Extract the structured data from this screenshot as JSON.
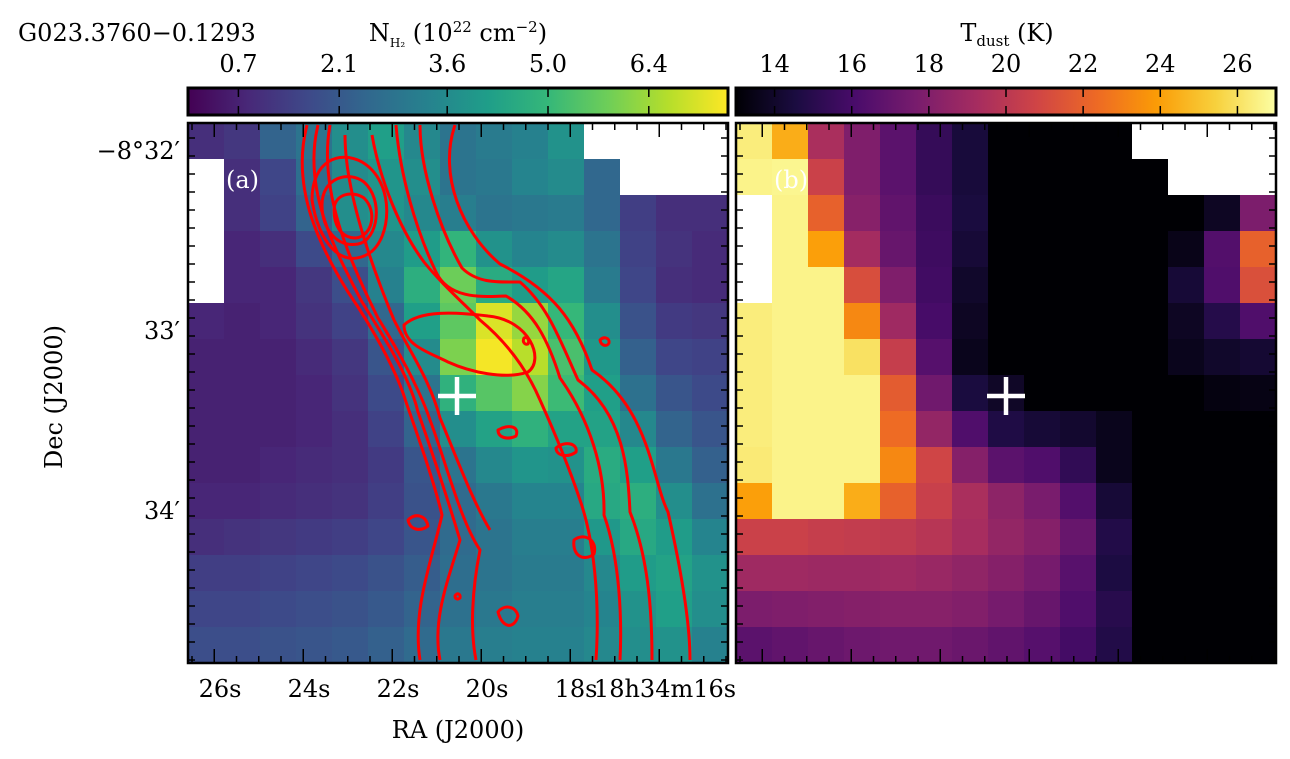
{
  "figure": {
    "source_name": "G023.3760−0.1293"
  },
  "chart_data": [
    {
      "type": "heatmap",
      "panel_label": "(a)",
      "colorbar": {
        "label_main": "N",
        "label_sub": "H₂",
        "label_rest": " (10",
        "label_exp": "22",
        "label_unit": " cm",
        "label_unit_exp": "−2",
        "label_close": ")",
        "ticks": [
          "0.7",
          "2.1",
          "3.6",
          "5.0",
          "6.4"
        ],
        "range": [
          0.0,
          7.5
        ],
        "colormap": "viridis"
      },
      "x_ticks": [
        "26s",
        "24s",
        "22s",
        "20s",
        "18s",
        "18h34m16s"
      ],
      "xlabel": "RA (J2000)",
      "y_ticks": [
        "−8°32′",
        "33′",
        "34′"
      ],
      "ylabel": "Dec (J2000)",
      "grid_shape": [
        15,
        15
      ],
      "values": [
        [
          1.0,
          1.2,
          2.4,
          2.9,
          3.7,
          4.2,
          3.5,
          2.9,
          3.1,
          3.3,
          3.8,
          null,
          null,
          null,
          null
        ],
        [
          null,
          1.0,
          1.6,
          2.7,
          3.6,
          3.9,
          3.7,
          2.9,
          3.0,
          3.4,
          3.6,
          2.5,
          null,
          null,
          null
        ],
        [
          null,
          1.0,
          1.5,
          2.4,
          3.7,
          3.9,
          3.5,
          3.2,
          2.9,
          3.0,
          3.1,
          2.5,
          1.4,
          1.0,
          1.0
        ],
        [
          null,
          0.8,
          1.0,
          1.7,
          2.5,
          3.5,
          4.1,
          4.9,
          3.8,
          3.4,
          3.6,
          2.9,
          1.5,
          1.1,
          0.9
        ],
        [
          null,
          0.8,
          0.8,
          1.2,
          1.8,
          3.3,
          4.7,
          5.8,
          4.6,
          4.1,
          4.4,
          3.1,
          1.6,
          1.0,
          0.9
        ],
        [
          0.8,
          0.7,
          0.8,
          1.1,
          1.5,
          2.5,
          4.2,
          5.6,
          7.1,
          6.3,
          5.0,
          3.7,
          1.9,
          1.3,
          1.2
        ],
        [
          0.7,
          0.7,
          0.7,
          0.9,
          1.2,
          2.0,
          3.6,
          6.0,
          7.4,
          6.7,
          5.3,
          4.0,
          2.3,
          1.6,
          1.5
        ],
        [
          0.7,
          0.7,
          0.7,
          0.8,
          1.1,
          1.7,
          2.9,
          4.8,
          5.5,
          6.1,
          5.1,
          4.2,
          2.8,
          2.0,
          1.7
        ],
        [
          0.7,
          0.7,
          0.7,
          0.8,
          1.0,
          1.5,
          2.4,
          3.7,
          4.3,
          4.8,
          4.3,
          4.3,
          3.5,
          2.4,
          2.0
        ],
        [
          0.7,
          0.7,
          0.8,
          0.9,
          1.0,
          1.3,
          2.0,
          2.9,
          3.5,
          3.9,
          3.8,
          4.6,
          4.2,
          3.0,
          2.3
        ],
        [
          0.8,
          0.8,
          0.9,
          1.0,
          1.1,
          1.4,
          1.9,
          2.6,
          3.0,
          3.4,
          3.4,
          4.5,
          4.7,
          3.7,
          2.8
        ],
        [
          1.0,
          1.1,
          1.2,
          1.3,
          1.4,
          1.6,
          2.0,
          2.6,
          2.9,
          3.2,
          3.2,
          4.0,
          4.5,
          4.1,
          3.4
        ],
        [
          1.4,
          1.4,
          1.5,
          1.6,
          1.7,
          1.9,
          2.2,
          2.7,
          2.9,
          3.1,
          3.1,
          3.5,
          4.1,
          4.3,
          3.8
        ],
        [
          1.6,
          1.6,
          1.7,
          1.8,
          1.9,
          2.1,
          2.4,
          2.8,
          3.0,
          3.2,
          3.2,
          3.4,
          3.8,
          4.2,
          3.7
        ],
        [
          1.8,
          1.8,
          1.9,
          2.0,
          2.1,
          2.3,
          2.6,
          3.0,
          3.2,
          3.3,
          3.3,
          3.5,
          3.7,
          3.8,
          3.3
        ]
      ],
      "contour_color": "#ff0000",
      "marker": "+"
    },
    {
      "type": "heatmap",
      "panel_label": "(b)",
      "colorbar": {
        "label_main": "T",
        "label_sub": "dust",
        "label_rest": " (K)",
        "ticks": [
          "14",
          "16",
          "18",
          "20",
          "22",
          "24",
          "26"
        ],
        "range": [
          13.0,
          27.0
        ],
        "colormap": "inferno"
      },
      "grid_shape": [
        15,
        15
      ],
      "values": [
        [
          26.4,
          24.4,
          19.4,
          17.9,
          16.7,
          15.4,
          14.4,
          12.0,
          12.0,
          12.0,
          12.0,
          null,
          null,
          null,
          null
        ],
        [
          26.6,
          26.7,
          20.6,
          17.9,
          16.7,
          15.4,
          14.4,
          12.0,
          12.0,
          12.0,
          12.0,
          12.0,
          null,
          null,
          null
        ],
        [
          null,
          26.6,
          22.0,
          18.2,
          16.9,
          15.6,
          14.5,
          12.0,
          12.0,
          12.0,
          12.0,
          12.0,
          12.0,
          13.8,
          17.8
        ],
        [
          null,
          26.6,
          24.0,
          19.2,
          17.1,
          15.7,
          14.3,
          12.0,
          12.0,
          12.0,
          12.0,
          12.0,
          13.5,
          16.4,
          22.0
        ],
        [
          null,
          26.6,
          26.6,
          21.2,
          17.9,
          15.8,
          14.0,
          12.0,
          12.0,
          12.0,
          12.0,
          12.0,
          14.3,
          16.3,
          21.3
        ],
        [
          26.4,
          26.6,
          26.6,
          23.3,
          19.0,
          16.0,
          13.8,
          12.0,
          12.0,
          12.0,
          12.0,
          12.0,
          13.8,
          14.9,
          16.3
        ],
        [
          26.4,
          26.6,
          26.6,
          26.0,
          20.4,
          16.5,
          13.6,
          12.0,
          12.0,
          12.0,
          12.0,
          12.0,
          13.6,
          14.0,
          14.2
        ],
        [
          26.4,
          26.6,
          26.6,
          26.6,
          21.8,
          17.4,
          14.5,
          13.9,
          12.0,
          12.0,
          12.0,
          12.0,
          12.9,
          13.3,
          13.4
        ],
        [
          26.4,
          26.6,
          26.6,
          26.6,
          22.4,
          18.6,
          16.3,
          14.7,
          14.3,
          14.1,
          13.6,
          12.0,
          12.0,
          12.5,
          12.7
        ],
        [
          26.3,
          26.6,
          26.6,
          26.6,
          23.3,
          20.8,
          18.1,
          16.7,
          16.3,
          15.3,
          13.6,
          12.0,
          12.0,
          12.0,
          12.4
        ],
        [
          24.0,
          26.6,
          26.6,
          24.4,
          22.0,
          20.5,
          19.4,
          18.4,
          17.7,
          16.4,
          14.3,
          12.0,
          12.0,
          12.0,
          12.0
        ],
        [
          20.6,
          20.6,
          20.4,
          20.3,
          20.2,
          19.9,
          19.3,
          18.6,
          18.1,
          17.1,
          14.8,
          12.0,
          12.0,
          12.0,
          12.0
        ],
        [
          19.0,
          19.0,
          18.9,
          18.9,
          19.0,
          18.8,
          18.5,
          18.1,
          17.6,
          16.6,
          14.6,
          12.0,
          12.0,
          12.0,
          12.0
        ],
        [
          17.8,
          17.9,
          18.0,
          18.1,
          18.2,
          18.2,
          18.0,
          17.6,
          17.1,
          16.3,
          15.0,
          12.5,
          12.0,
          12.0,
          12.0
        ],
        [
          16.7,
          16.9,
          17.1,
          17.3,
          17.4,
          17.4,
          17.2,
          16.9,
          16.5,
          15.9,
          14.8,
          13.0,
          12.0,
          12.0,
          12.0
        ]
      ],
      "marker": "+"
    }
  ]
}
